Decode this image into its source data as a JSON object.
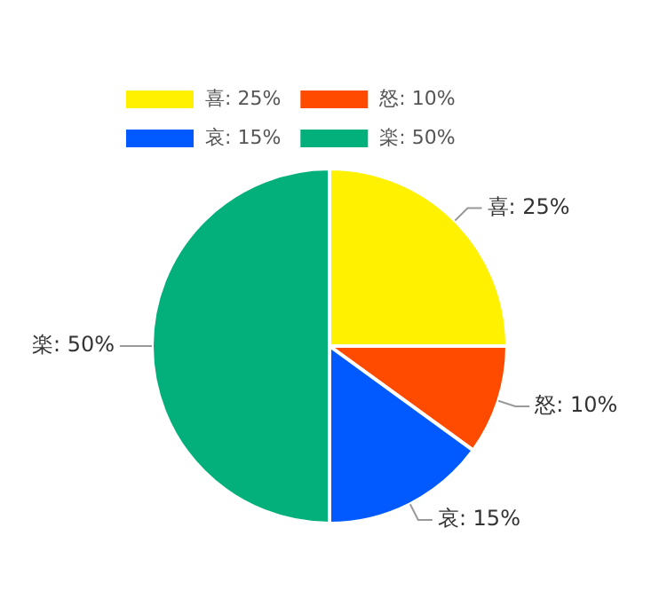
{
  "chart_data": {
    "type": "pie",
    "categories": [
      "喜: 25%",
      "怒: 10%",
      "哀: 15%",
      "楽: 50%"
    ],
    "values": [
      25,
      10,
      15,
      50
    ],
    "colors": [
      "#fff100",
      "#ff4b00",
      "#005aff",
      "#03af7a"
    ],
    "legend": "top left"
  }
}
